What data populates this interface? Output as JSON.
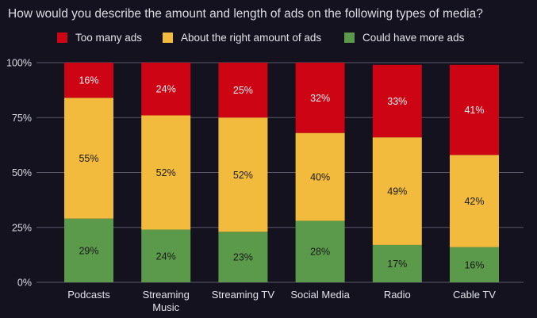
{
  "chart_data": {
    "type": "bar",
    "stacked": true,
    "title": "How would you describe the amount and length of ads on the following types of media?",
    "categories": [
      [
        "Podcasts"
      ],
      [
        "Streaming",
        "Music"
      ],
      [
        "Streaming TV"
      ],
      [
        "Social Media"
      ],
      [
        "Radio"
      ],
      [
        "Cable TV"
      ]
    ],
    "series": [
      {
        "name": "Could have more ads",
        "color": "#5a9a4a",
        "label_color": "#1a1a1a",
        "values": [
          29,
          24,
          23,
          28,
          17,
          16
        ]
      },
      {
        "name": "About the right amount of ads",
        "color": "#f2bb3d",
        "label_color": "#1a1a1a",
        "values": [
          55,
          52,
          52,
          40,
          49,
          42
        ]
      },
      {
        "name": "Too many ads",
        "color": "#cc0414",
        "label_color": "#f2f2f2",
        "values": [
          16,
          24,
          25,
          32,
          33,
          41
        ]
      }
    ],
    "legend_order": [
      "Too many ads",
      "About the right amount of ads",
      "Could have more ads"
    ],
    "yticks": [
      "0%",
      "25%",
      "50%",
      "75%",
      "100%"
    ],
    "ylim": [
      0,
      100
    ],
    "grid": true,
    "legend_position": "top",
    "xlabel": "",
    "ylabel": ""
  }
}
